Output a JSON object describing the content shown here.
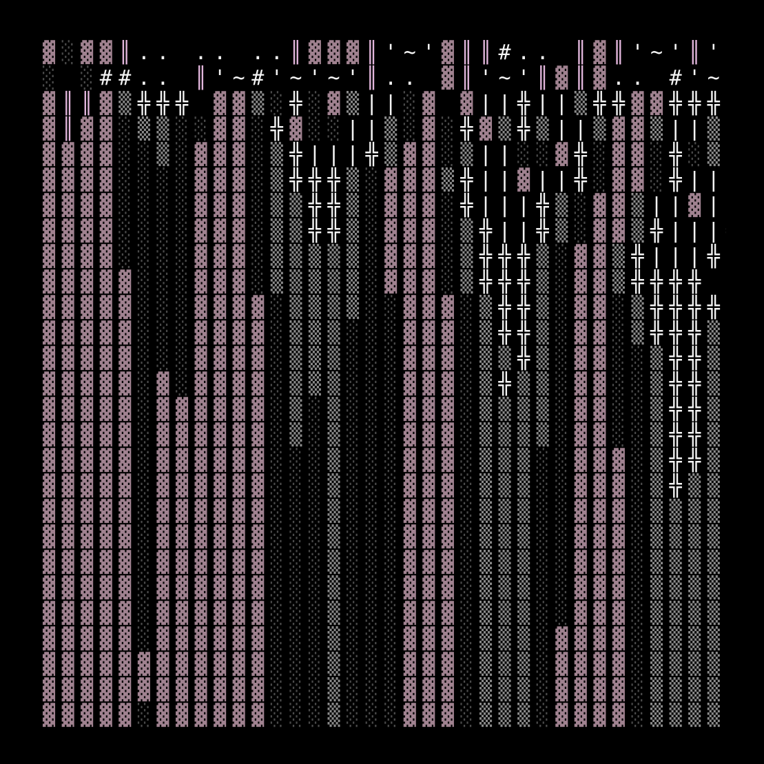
{
  "rows": [
    "▓░▓▓║.. .. ..║▓▓▓║'~'▓║║#.. ║▓║'~'║'~",
    "░ ░##.. ║'~#'~'~'║.. ▓║'~'║▓║▓.. #'~'.",
    "▓║║▓▒╬╬╬ ▓▓▒░╬░▓▒||░▓ ▓||╬||▒╬╬▓▓╬╬╬░",
    "▓║▓▓░▒▒░░▓▓░╬▓░░||▒░▓░╬▓▒╬▒||▒▓▓▒||▒|",
    "▓▓▓▓░░▒░▓▓▓░▒╬|||╬▒▓▓░▒||░░▓╬░▓▓░╬░▒▒",
    "▓▓▓▓░░░░▓▓▓░▒╬╬╬▒░▓▓▓▒╬||▓||╬░▓▓░╬||░",
    "▓▓▓▓░░░░▓▓▓░▒▒╬╬▒░▓▓▓░╬|||╬▒░▓▓▒||▓||",
    "▓▓▓▓░░░░▓▓▓░▒▒╬╬▒░▓▓▓░▒╬||╬▒░▓▓▒╬|||╬",
    "▓▓▓▓░░░░▓▓▓░▒▒▒▒▒░▓▓▓░▒╬╬╬▒░▓▓▒╬|||╬",
    "▓▓▓▓▓░░░▓▓▓░▒▒▒▒▒░▓▓▓░▒╬╬╬▒░▓▓▒╬╬╬╬",
    "▓▓▓▓▓░░░▓▓▓▓░▒▒▒▒░░▓▓▓░▒╬╬▒░▓▓░▒╬╬╬╬",
    "▓▓▓▓▓░░░▓▓▓▓░▒▒▒░░░▓▓▓░▒╬╬▒░▓▓░▒╬╬╬▒",
    "▓▓▓▓▓░░░▓▓▓▓░▒▒▒░░░▓▓▓░▒▒╬▒░▓▓░░▒╬╬▒",
    "▓▓▓▓▓░▓░▓▓▓▓░▒▒▒░░░▓▓▓░▒╬▒▒░▓▓░░▒╬╬▒",
    "▓▓▓▓▓░▓▓▓▓▓▓░▒░▒░░░▓▓▓░▒▒▒▒░▓▓░░▒╬╬▒",
    "▓▓▓▓▓░▓▓▓▓▓▓░▒░▒░░░▓▓▓░▒▒▒▒░▓▓░░▒╬╬▒",
    "▓▓▓▓▓░▓▓▓▓▓▓░░░▒░░░▓▓▓░▒▒▒░░▓▓▓░▒╬╬▒",
    "▓▓▓▓▓░▓▓▓▓▓▓░░░▒░░░▓▓▓░▒▒▒░░▓▓▓░▒╬▒▒",
    "▓▓▓▓▓░▓▓▓▓▓▓░░░▒░░░▓▓▓░▒▒▒░░▓▓▓░▒▒▒▒",
    "▓▓▓▓▓░▓▓▓▓▓▓░░░▒░░░▓▓▓░▒▒▒░░▓▓▓░▒▒▒▒",
    "▓▓▓▓▓░▓▓▓▓▓▓░░░▒░░░▓▓▓░▒▒▒░░▓▓▓░▒▒▒▒",
    "▓▓▓▓▓░▓▓▓▓▓▓░░░▒░░░▓▓▓░▒▒▒░░▓▓▓░▒▒▒▒",
    "▓▓▓▓▓░▓▓▓▓▓▓░░░▒░░░▓▓▓░▒▒▒░░▓▓▓░▒▒▒▒",
    "▓▓▓▓▓░▓▓▓▓▓▓░░░▒░░░▓▓▓░▒▒▒░▓▓▓▓░▒▒▒▒",
    "▓▓▓▓▓▓▓▓▓▓▓▓░░░▒░░░▓▓▓░▒▒▒░▓▓▓▓░▒▒▒▒",
    "▓▓▓▓▓▓▓▓▓▓▓▓░░░▒░░░▓▓▓░▒▒▒░▓▓▓▓░▒▒▒▒",
    "▓▓▓▓▓░▓▓▓▓▓▓░░░▒░░░▓▓▓░▒▒▒░▓▓▓▓░▒▒▒▒"
  ]
}
